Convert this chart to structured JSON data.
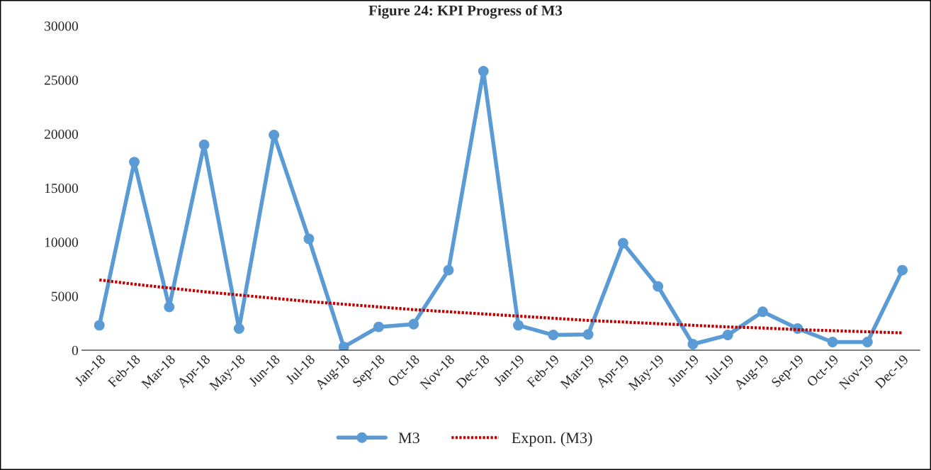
{
  "chart_data": {
    "type": "line",
    "title": "Figure 24: KPI Progress of M3",
    "categories": [
      "Jan-18",
      "Feb-18",
      "Mar-18",
      "Apr-18",
      "May-18",
      "Jun-18",
      "Jul-18",
      "Aug-18",
      "Sep-18",
      "Oct-18",
      "Nov-18",
      "Dec-18",
      "Jan-19",
      "Feb-19",
      "Mar-19",
      "Apr-19",
      "May-19",
      "Jun-19",
      "Jul-19",
      "Aug-19",
      "Sep-19",
      "Oct-19",
      "Nov-19",
      "Dec-19"
    ],
    "series": [
      {
        "name": "M3",
        "color": "#5b9bd5",
        "marker": "circle",
        "line_style": "solid",
        "values": [
          2300,
          17400,
          4000,
          19000,
          2000,
          19900,
          10300,
          300,
          2150,
          2400,
          7400,
          25800,
          2300,
          1400,
          1450,
          9900,
          5900,
          550,
          1400,
          3550,
          2000,
          750,
          750,
          7400
        ]
      },
      {
        "name": "Expon. (M3)",
        "color": "#c00000",
        "marker": "none",
        "line_style": "dashed",
        "values": [
          6500,
          6100,
          5750,
          5400,
          5100,
          4800,
          4500,
          4250,
          4000,
          3750,
          3550,
          3350,
          3150,
          2950,
          2750,
          2600,
          2450,
          2300,
          2150,
          2050,
          1900,
          1800,
          1700,
          1600
        ]
      }
    ],
    "ylim": [
      0,
      30000
    ],
    "yticks": [
      0,
      5000,
      10000,
      15000,
      20000,
      25000,
      30000
    ],
    "grid": false,
    "legend": "bottom"
  }
}
